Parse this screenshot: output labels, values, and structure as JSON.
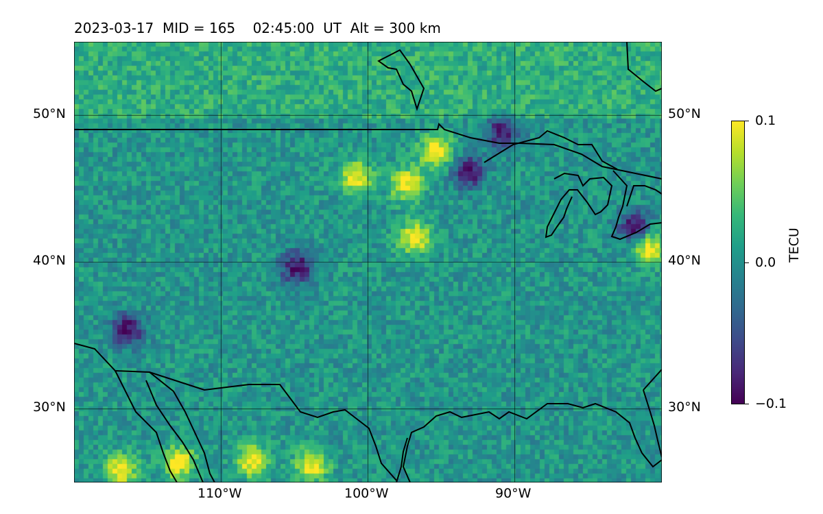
{
  "title": "2023-03-17  MID = 165    02:45:00  UT  Alt = 300 km",
  "map": {
    "extent": {
      "lon_min": -120,
      "lon_max": -80,
      "lat_min": 25,
      "lat_max": 55
    },
    "gridlines": {
      "lons": [
        -110,
        -100,
        -90
      ],
      "lats": [
        30,
        40,
        50
      ]
    },
    "lat_labels": [
      "50°N",
      "40°N",
      "30°N"
    ],
    "lon_labels": [
      "110°W",
      "100°W",
      "90°W"
    ],
    "field": "TEC perturbation",
    "hotspots": [
      {
        "lon": -117,
        "lat": 26,
        "value": 0.1
      },
      {
        "lon": -113,
        "lat": 26.5,
        "value": 0.1
      },
      {
        "lon": -108,
        "lat": 26.6,
        "value": 0.1
      },
      {
        "lon": -104,
        "lat": 26.3,
        "value": 0.1
      },
      {
        "lon": -101,
        "lat": 45.9,
        "value": 0.1
      },
      {
        "lon": -97.5,
        "lat": 45.5,
        "value": 0.1
      },
      {
        "lon": -95.5,
        "lat": 47.7,
        "value": 0.1
      },
      {
        "lon": -97,
        "lat": 41.8,
        "value": 0.1
      },
      {
        "lon": -81,
        "lat": 41.2,
        "value": 0.1
      }
    ],
    "coldspots": [
      {
        "lon": -91,
        "lat": 49,
        "value": -0.1
      },
      {
        "lon": -93.3,
        "lat": 46.3,
        "value": -0.1
      },
      {
        "lon": -116.5,
        "lat": 35.5,
        "value": -0.1
      },
      {
        "lon": -105,
        "lat": 39.8,
        "value": -0.1
      },
      {
        "lon": -82,
        "lat": 42.5,
        "value": -0.1
      }
    ]
  },
  "colorbar": {
    "label": "TECU",
    "min": -0.1,
    "max": 0.1,
    "colormap": [
      "#440154",
      "#482878",
      "#3e4a89",
      "#31688e",
      "#26828e",
      "#1f9e89",
      "#35b779",
      "#6ece58",
      "#b5de2b",
      "#fde725"
    ],
    "tick_labels": [
      "0.1",
      "0.0",
      "−0.1"
    ]
  },
  "colors": {
    "coast": "#000000",
    "grid": "#000000"
  }
}
